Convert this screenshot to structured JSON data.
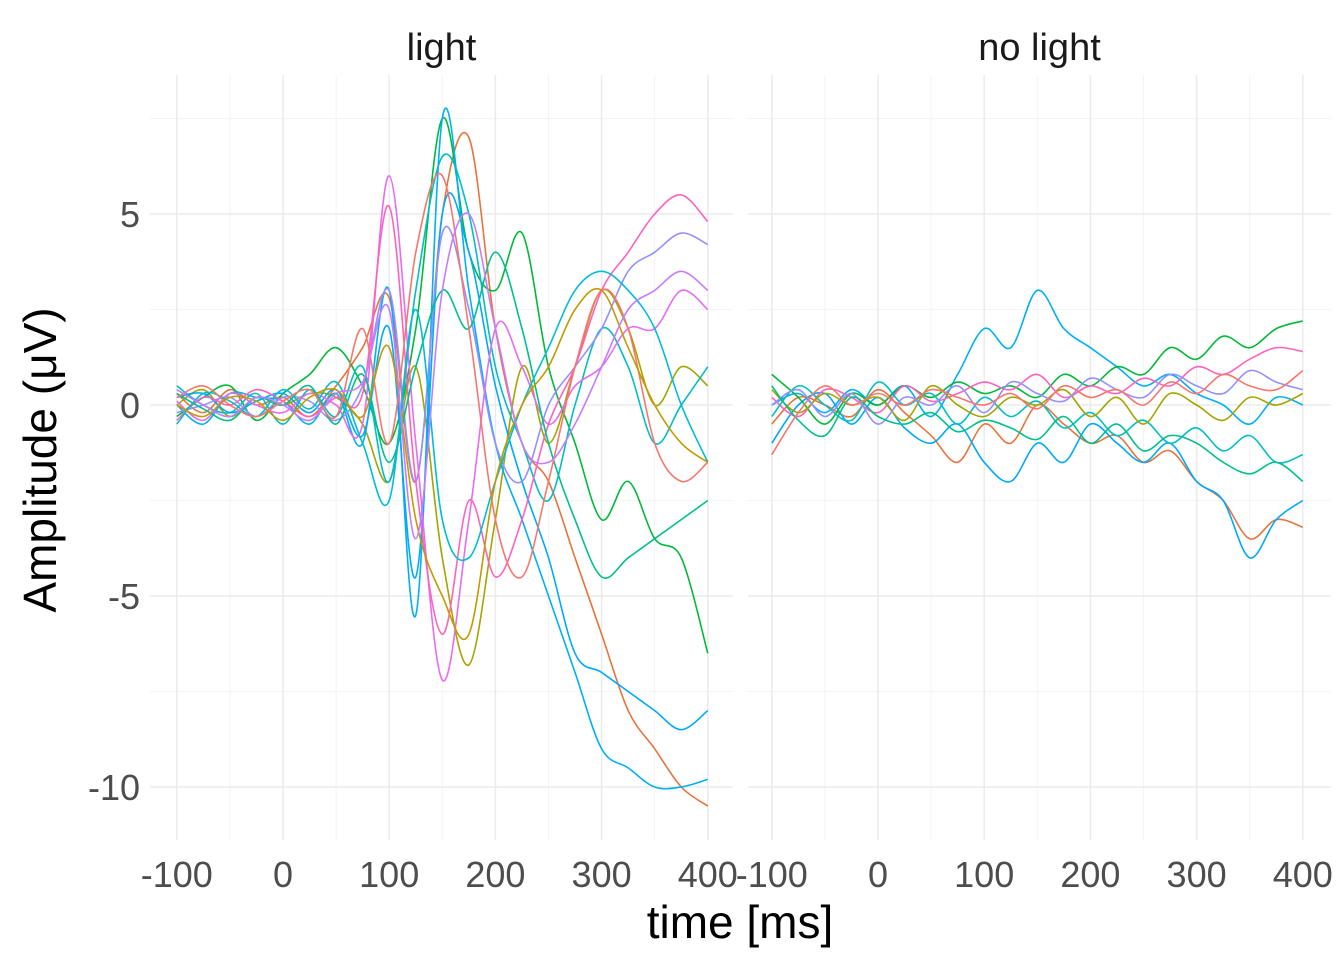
{
  "chart_data": {
    "type": "line",
    "facets": [
      "light",
      "no light"
    ],
    "xlabel": "time [ms]",
    "ylabel": "Amplitude (μV)",
    "xlim": [
      -100,
      400
    ],
    "ylim": [
      -11.5,
      8.5
    ],
    "x_ticks": [
      -100,
      0,
      100,
      200,
      300,
      400
    ],
    "x_tick_labels": [
      "-100",
      "0",
      "100",
      "200",
      "300",
      "400"
    ],
    "y_ticks": [
      5,
      0,
      -5,
      -10
    ],
    "y_tick_labels": [
      "5",
      "0",
      "-5",
      "-10"
    ],
    "grid": true,
    "legend": "none",
    "x": [
      -100,
      -75,
      -50,
      -25,
      0,
      25,
      50,
      75,
      100,
      125,
      150,
      175,
      200,
      225,
      250,
      275,
      300,
      325,
      350,
      375,
      400
    ],
    "panels": [
      {
        "title": "light",
        "series": [
          {
            "color": "#E8743B",
            "values": [
              0.3,
              -0.2,
              0.4,
              0,
              0.2,
              -0.3,
              0.5,
              1.5,
              2.8,
              -2,
              5,
              7,
              2,
              -1,
              -2,
              -4,
              -6,
              -8,
              -9,
              -10,
              -10.5
            ]
          },
          {
            "color": "#A3A500",
            "values": [
              0,
              0.4,
              -0.3,
              0.2,
              0,
              0.3,
              0.2,
              -0.5,
              -2,
              1,
              -4,
              -6.8,
              -3,
              1,
              -1,
              1,
              3,
              2,
              0,
              1,
              0.5
            ]
          },
          {
            "color": "#00BA38",
            "values": [
              -0.3,
              0.2,
              0.5,
              -0.4,
              0.3,
              0.8,
              1.5,
              0.5,
              -1,
              2,
              7.5,
              4,
              3,
              4.5,
              1,
              -1,
              -3,
              -2,
              -3.5,
              -4,
              -6.5
            ]
          },
          {
            "color": "#00BFC4",
            "values": [
              0.5,
              0,
              -0.2,
              0.3,
              -0.5,
              0.4,
              -0.3,
              1,
              -2,
              3,
              6.5,
              5,
              1,
              -1,
              -2.5,
              0,
              2,
              1,
              -1,
              0,
              1
            ]
          },
          {
            "color": "#00B0F6",
            "values": [
              0,
              -0.5,
              0.3,
              0.2,
              0.1,
              -0.5,
              0.3,
              -1,
              3,
              -5.5,
              7.5,
              3,
              -1,
              -3,
              -5,
              -7,
              -9,
              -9.5,
              -10,
              -10,
              -9.8
            ]
          },
          {
            "color": "#00A9FF",
            "values": [
              0.2,
              0.3,
              -0.2,
              0.1,
              0.3,
              -0.2,
              0.4,
              -0.8,
              2,
              -4.5,
              5,
              4,
              0.5,
              -2,
              -4,
              -6.5,
              -7,
              -7.5,
              -8,
              -8.5,
              -8
            ]
          },
          {
            "color": "#9590FF",
            "values": [
              -0.2,
              0,
              0.2,
              -0.3,
              0.2,
              0.1,
              -0.4,
              0.5,
              3,
              -2,
              4.5,
              2.5,
              -1,
              -2,
              0,
              1,
              2,
              3.5,
              4,
              4.5,
              4.2
            ]
          },
          {
            "color": "#E76BF3",
            "values": [
              0.1,
              -0.4,
              0.3,
              0,
              -0.2,
              0.3,
              0,
              -0.5,
              6,
              -1,
              -7.2,
              -3,
              2,
              1,
              -0.5,
              0.5,
              1,
              2,
              2,
              3,
              2.5
            ]
          },
          {
            "color": "#FF62BC",
            "values": [
              -0.4,
              0.2,
              0,
              0.4,
              0.1,
              -0.3,
              0.2,
              0.3,
              5.2,
              -2,
              -6,
              -2.5,
              -4.5,
              -3,
              -0.5,
              1,
              3,
              4,
              5,
              5.5,
              4.8
            ]
          },
          {
            "color": "#00C08B",
            "values": [
              0.3,
              -0.1,
              -0.4,
              0.2,
              0,
              0.5,
              -0.5,
              0.8,
              -1.5,
              1,
              3,
              2,
              4,
              2,
              -1,
              -3,
              -4.5,
              -4,
              -3.5,
              -3,
              -2.5
            ]
          },
          {
            "color": "#00BCD8",
            "values": [
              -0.5,
              0.3,
              0.1,
              -0.3,
              0.4,
              -0.1,
              0.6,
              -1,
              -2.5,
              2.5,
              -3,
              -4,
              -2,
              0,
              1.5,
              3,
              3.5,
              3,
              2,
              0,
              -1.5
            ]
          },
          {
            "color": "#F8766D",
            "values": [
              0.2,
              0.5,
              0,
              -0.3,
              0.1,
              0.4,
              -0.3,
              2,
              -1,
              4,
              6,
              2,
              -3,
              -4.5,
              -2,
              1,
              3,
              2,
              -1,
              -2,
              -1.5
            ]
          },
          {
            "color": "#C49A00",
            "values": [
              0,
              -0.3,
              0.2,
              0.1,
              -0.4,
              0.2,
              0.4,
              -0.3,
              1.5,
              -3,
              -5,
              -6,
              -2,
              0,
              1,
              2.5,
              3,
              1.5,
              0,
              -1,
              -1.5
            ]
          },
          {
            "color": "#C77CFF",
            "values": [
              0.4,
              0,
              -0.3,
              0.2,
              0,
              -0.4,
              0.3,
              0.6,
              2.5,
              -3.5,
              3,
              5,
              2,
              -1,
              -1.5,
              -0.5,
              1,
              2.5,
              3,
              3.5,
              3
            ]
          }
        ]
      },
      {
        "title": "no light",
        "series": [
          {
            "color": "#00B0F6",
            "values": [
              0,
              0.3,
              -0.2,
              0.4,
              0,
              0.5,
              -0.3,
              0.8,
              2,
              1.5,
              3,
              2,
              1.5,
              1,
              0.5,
              0.8,
              0.3,
              0,
              -0.5,
              0.2,
              0
            ]
          },
          {
            "color": "#E8743B",
            "values": [
              -0.5,
              0.2,
              0,
              -0.3,
              0.4,
              -0.2,
              -0.8,
              -1.5,
              -0.5,
              -1,
              0,
              -0.5,
              -1,
              -0.8,
              -1.5,
              -1.2,
              -2,
              -2.5,
              -3.5,
              -3,
              -3.2
            ]
          },
          {
            "color": "#00A9FF",
            "values": [
              -1,
              0,
              0.3,
              -0.5,
              0.2,
              -0.6,
              -1,
              -0.5,
              -1.5,
              -2,
              -1,
              -1.5,
              -0.5,
              -1,
              -1.5,
              -1,
              -2,
              -2.5,
              -4,
              -3,
              -2.5
            ]
          },
          {
            "color": "#00BA38",
            "values": [
              0.8,
              0.2,
              -0.5,
              0.3,
              0,
              0.5,
              0.2,
              0.6,
              0.3,
              0.5,
              0.2,
              0.8,
              0.5,
              1,
              0.8,
              1.5,
              1.2,
              1.8,
              1.5,
              2,
              2.2
            ]
          },
          {
            "color": "#FF62BC",
            "values": [
              0.2,
              -0.3,
              0.4,
              0.2,
              -0.2,
              0.5,
              0.1,
              0.3,
              0.6,
              0.4,
              0.8,
              0.2,
              0.5,
              0.3,
              0.7,
              0.5,
              1,
              0.8,
              1.2,
              1.5,
              1.4
            ]
          },
          {
            "color": "#00BFC4",
            "values": [
              -0.3,
              0.5,
              0,
              -0.4,
              0.6,
              0,
              0.3,
              -0.5,
              0.2,
              -0.3,
              0.1,
              -0.6,
              -0.2,
              -0.8,
              -0.4,
              -1,
              -0.6,
              -1.2,
              -0.8,
              -1.5,
              -1.3
            ]
          },
          {
            "color": "#A3A500",
            "values": [
              0.4,
              -0.2,
              0.3,
              0,
              0.2,
              -0.4,
              0.5,
              0,
              -0.3,
              0.2,
              0,
              0.4,
              -0.3,
              0.2,
              -0.5,
              0.3,
              0,
              -0.4,
              0.2,
              0,
              0.3
            ]
          },
          {
            "color": "#9590FF",
            "values": [
              0,
              0.4,
              -0.3,
              0.3,
              -0.5,
              0.2,
              0,
              0.5,
              -0.2,
              0.6,
              0.3,
              0.1,
              0.7,
              0.4,
              0.2,
              0.8,
              0.5,
              0.3,
              0.9,
              0.6,
              0.4
            ]
          },
          {
            "color": "#00C08B",
            "values": [
              0.5,
              -0.4,
              -0.8,
              0.2,
              -0.3,
              -0.5,
              -0.2,
              -0.7,
              -0.4,
              -0.6,
              -0.9,
              -0.3,
              -1,
              -0.5,
              -1.2,
              -0.8,
              -1,
              -1.5,
              -1.8,
              -1.5,
              -2
            ]
          },
          {
            "color": "#F8766D",
            "values": [
              -1.3,
              -0.2,
              0.5,
              0,
              0.3,
              0,
              0.4,
              0.2,
              0,
              0.3,
              -0.1,
              0.5,
              0.2,
              0.4,
              0,
              0.6,
              0.3,
              0.8,
              0.5,
              0.4,
              0.9
            ]
          }
        ]
      }
    ]
  }
}
